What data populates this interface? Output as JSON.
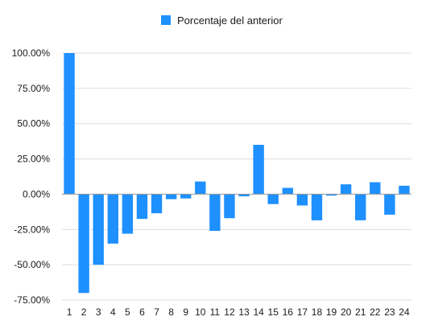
{
  "chart_data": {
    "type": "bar",
    "categories": [
      "1",
      "2",
      "3",
      "4",
      "5",
      "6",
      "7",
      "8",
      "9",
      "10",
      "11",
      "12",
      "13",
      "14",
      "15",
      "16",
      "17",
      "18",
      "19",
      "20",
      "21",
      "22",
      "23",
      "24"
    ],
    "series": [
      {
        "name": "Porcentaje del anterior",
        "values": [
          100,
          -70,
          -50,
          -35,
          -28,
          -17.5,
          -13.5,
          -3.5,
          -3,
          9,
          -26,
          -17,
          -1.5,
          35,
          -7,
          4.5,
          -8,
          -18.5,
          -1,
          7,
          -18.5,
          8.5,
          -14.5,
          6
        ]
      }
    ],
    "yticks": [
      "100.00%",
      "75.00%",
      "50.00%",
      "25.00%",
      "0.00%",
      "-25.00%",
      "-50.00%",
      "-75.00%"
    ],
    "ytick_values": [
      100,
      75,
      50,
      25,
      0,
      -25,
      -50,
      -75
    ],
    "ylim": [
      -75,
      100
    ],
    "grid": true,
    "legend_position": "top-center",
    "colors": {
      "bar": "#1E90FF",
      "grid": "#dcdcdc",
      "zero_line": "#9a9a9a"
    }
  }
}
